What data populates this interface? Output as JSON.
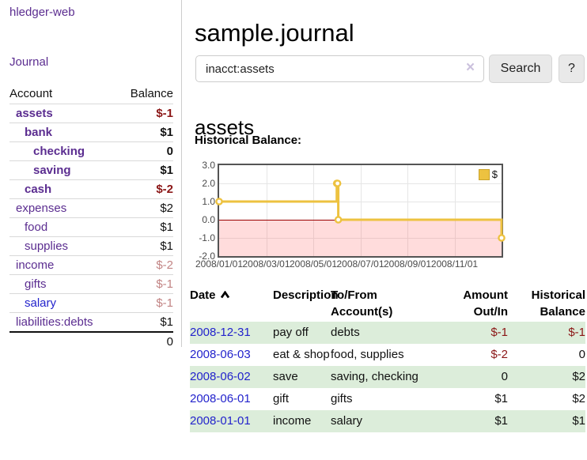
{
  "colors": {
    "purple": "#5b2d90",
    "link_blue": "#2323cc",
    "neg_strong": "#8b1616",
    "neg_soft": "#c28484",
    "row_green": "#dcedda",
    "chart_yellow": "#edc240",
    "chart_yellow_border": "#c9a22a",
    "zero_line": "#990000",
    "axis_text": "#4a4a4a"
  },
  "sidebar": {
    "brand": "hledger-web",
    "journal_link": "Journal",
    "table": {
      "account_header": "Account",
      "balance_header": "Balance",
      "rows": [
        {
          "name": "assets",
          "balance": "$-1",
          "depth": 1,
          "bold": true,
          "name_color": "purple",
          "balance_color": "neg_strong"
        },
        {
          "name": "bank",
          "balance": "$1",
          "depth": 2,
          "bold": true,
          "name_color": "purple",
          "balance_color": "normal"
        },
        {
          "name": "checking",
          "balance": "0",
          "depth": 3,
          "bold": true,
          "name_color": "purple",
          "balance_color": "normal"
        },
        {
          "name": "saving",
          "balance": "$1",
          "depth": 3,
          "bold": true,
          "name_color": "purple",
          "balance_color": "normal"
        },
        {
          "name": "cash",
          "balance": "$-2",
          "depth": 2,
          "bold": true,
          "name_color": "purple",
          "balance_color": "neg_strong"
        },
        {
          "name": "expenses",
          "balance": "$2",
          "depth": 1,
          "bold": false,
          "name_color": "purple",
          "balance_color": "normal"
        },
        {
          "name": "food",
          "balance": "$1",
          "depth": 2,
          "bold": false,
          "name_color": "purple",
          "balance_color": "normal"
        },
        {
          "name": "supplies",
          "balance": "$1",
          "depth": 2,
          "bold": false,
          "name_color": "purple",
          "balance_color": "normal"
        },
        {
          "name": "income",
          "balance": "$-2",
          "depth": 1,
          "bold": false,
          "name_color": "purple",
          "balance_color": "neg_soft"
        },
        {
          "name": "gifts",
          "balance": "$-1",
          "depth": 2,
          "bold": false,
          "name_color": "purple",
          "balance_color": "neg_soft"
        },
        {
          "name": "salary",
          "balance": "$-1",
          "depth": 2,
          "bold": false,
          "name_color": "blue",
          "balance_color": "neg_soft"
        },
        {
          "name": "liabilities:debts",
          "balance": "$1",
          "depth": 1,
          "bold": false,
          "name_color": "purple",
          "balance_color": "normal"
        }
      ],
      "total": "0"
    }
  },
  "main": {
    "title": "sample.journal",
    "search": {
      "value": "inacct:assets",
      "clear_icon": "×",
      "search_button": "Search",
      "help_button": "?"
    },
    "account_heading": "assets",
    "section_label": "Historical Balance:"
  },
  "chart_data": {
    "type": "line",
    "title": "Historical Balance",
    "step": true,
    "series": [
      {
        "name": "$",
        "color": "#edc240",
        "points": [
          {
            "date": "2008-01-01",
            "value": 1
          },
          {
            "date": "2008-06-01",
            "value": 2
          },
          {
            "date": "2008-06-02",
            "value": 2
          },
          {
            "date": "2008-06-03",
            "value": 0
          },
          {
            "date": "2008-12-31",
            "value": -1
          }
        ]
      }
    ],
    "x_range": [
      "2008-01-01",
      "2008-12-31"
    ],
    "ylim": [
      -2,
      3
    ],
    "y_ticks": [
      "3.0",
      "2.0",
      "1.0",
      "0.0",
      "-1.0",
      "-2.0"
    ],
    "x_ticks": [
      "2008/01/01",
      "2008/03/01",
      "2008/05/01",
      "2008/07/01",
      "2008/09/01",
      "2008/11/01"
    ],
    "legend": {
      "label": "$",
      "position": "top-right"
    },
    "grid": true,
    "negative_region_shaded": true
  },
  "register": {
    "headers": {
      "date": "Date",
      "description": "Description",
      "account": "To/From Account(s)",
      "amount": "Amount Out/In",
      "balance": "Historical Balance"
    },
    "rows": [
      {
        "date": "2008-12-31",
        "description": "pay off",
        "account": "debts",
        "amount": "$-1",
        "amount_neg": true,
        "balance": "$-1",
        "balance_neg": true,
        "highlighted": true
      },
      {
        "date": "2008-06-03",
        "description": "eat & shop",
        "account": "food, supplies",
        "amount": "$-2",
        "amount_neg": true,
        "balance": "0",
        "balance_neg": false,
        "highlighted": false
      },
      {
        "date": "2008-06-02",
        "description": "save",
        "account": "saving, checking",
        "amount": "0",
        "amount_neg": false,
        "balance": "$2",
        "balance_neg": false,
        "highlighted": true
      },
      {
        "date": "2008-06-01",
        "description": "gift",
        "account": "gifts",
        "amount": "$1",
        "amount_neg": false,
        "balance": "$2",
        "balance_neg": false,
        "highlighted": false
      },
      {
        "date": "2008-01-01",
        "description": "income",
        "account": "salary",
        "amount": "$1",
        "amount_neg": false,
        "balance": "$1",
        "balance_neg": false,
        "highlighted": true
      }
    ]
  }
}
